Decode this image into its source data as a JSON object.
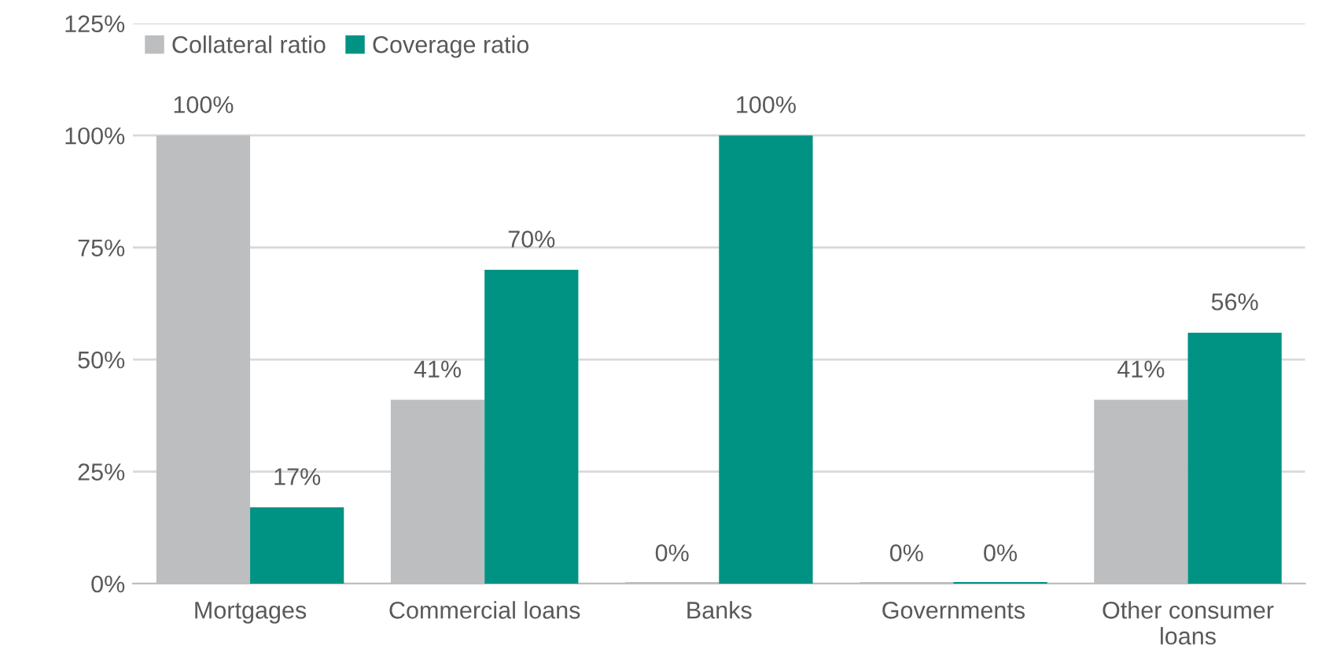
{
  "chart_data": {
    "type": "bar",
    "categories": [
      "Mortgages",
      "Commercial loans",
      "Banks",
      "Governments",
      "Other consumer\nloans"
    ],
    "series": [
      {
        "name": "Collateral ratio",
        "color": "#bcbec0",
        "values": [
          100,
          41,
          0,
          0,
          41
        ],
        "value_labels": [
          "100%",
          "41%",
          "0%",
          "0%",
          "41%"
        ]
      },
      {
        "name": "Coverage ratio",
        "color": "#009384",
        "values": [
          17,
          70,
          100,
          0,
          56
        ],
        "value_labels": [
          "17%",
          "70%",
          "100%",
          "0%",
          "56%"
        ]
      }
    ],
    "ylim": [
      0,
      125
    ],
    "yticks": [
      {
        "value": 0,
        "label": "0%"
      },
      {
        "value": 25,
        "label": "25%"
      },
      {
        "value": 50,
        "label": "50%"
      },
      {
        "value": 75,
        "label": "75%"
      },
      {
        "value": 100,
        "label": "100%"
      },
      {
        "value": 125,
        "label": "125%"
      }
    ],
    "grid": "y",
    "legend": "top left"
  }
}
